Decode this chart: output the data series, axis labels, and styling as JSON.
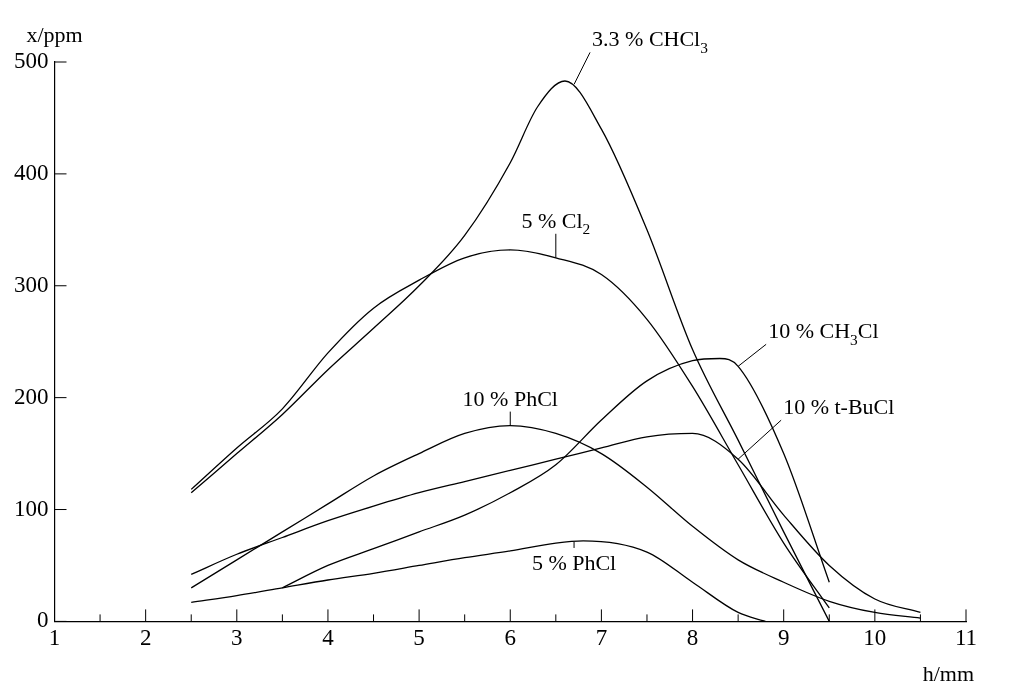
{
  "chart_data": {
    "type": "line",
    "xlabel": "h/mm",
    "ylabel": "x/ppm",
    "xlim": [
      1,
      11
    ],
    "ylim": [
      0,
      500
    ],
    "xticks": [
      1,
      {
        "value": 1.5,
        "label": null
      },
      2,
      {
        "value": 2.5,
        "label": null
      },
      3,
      {
        "value": 3.5,
        "label": null
      },
      4,
      {
        "value": 4.5,
        "label": null
      },
      5,
      {
        "value": 5.5,
        "label": null
      },
      6,
      {
        "value": 6.5,
        "label": null
      },
      7,
      {
        "value": 7.5,
        "label": null
      },
      8,
      {
        "value": 8.5,
        "label": null
      },
      9,
      {
        "value": 9.5,
        "label": null
      },
      10,
      {
        "value": 10.5,
        "label": null
      },
      11
    ],
    "yticks": [
      0,
      100,
      200,
      300,
      400,
      500
    ],
    "grid": false,
    "legend": false,
    "marker": "none",
    "line_style": "solid",
    "series": [
      {
        "color": "#000000",
        "x": [
          2.5,
          3,
          3.5,
          4,
          4.5,
          5,
          5.5,
          6,
          6.3,
          6.6,
          7,
          7.5,
          8,
          8.5,
          9,
          9.5
        ],
        "values": [
          115,
          150,
          185,
          225,
          262,
          300,
          345,
          410,
          460,
          483,
          440,
          350,
          243,
          162,
          80,
          0
        ]
      },
      {
        "color": "#000000",
        "x": [
          2.5,
          3,
          3.5,
          4,
          4.5,
          5,
          5.5,
          6,
          6.5,
          7,
          7.5,
          8,
          8.5,
          9,
          9.5
        ],
        "values": [
          118,
          155,
          190,
          240,
          280,
          305,
          325,
          332,
          325,
          310,
          270,
          210,
          140,
          70,
          12
        ]
      },
      {
        "color": "#000000",
        "x": [
          3.5,
          4,
          4.5,
          5,
          5.5,
          6,
          6.5,
          7,
          7.5,
          8,
          8.3,
          8.5,
          9,
          9.5
        ],
        "values": [
          30,
          50,
          65,
          80,
          95,
          115,
          140,
          180,
          215,
          233,
          235,
          228,
          150,
          35
        ]
      },
      {
        "color": "#000000",
        "x": [
          2.5,
          3,
          3.5,
          4,
          4.5,
          5,
          5.5,
          6,
          6.5,
          7,
          7.5,
          8,
          8.5,
          9,
          9.5,
          10,
          10.5
        ],
        "values": [
          42,
          60,
          75,
          90,
          103,
          115,
          125,
          135,
          145,
          155,
          165,
          168,
          145,
          95,
          50,
          20,
          8
        ]
      },
      {
        "color": "#000000",
        "x": [
          2.5,
          3,
          3.5,
          4,
          4.5,
          5,
          5.5,
          6,
          6.5,
          7,
          7.5,
          8,
          8.5,
          9,
          9.5,
          10,
          10.5
        ],
        "values": [
          30,
          55,
          80,
          105,
          130,
          150,
          168,
          175,
          168,
          150,
          120,
          85,
          55,
          35,
          18,
          8,
          3
        ]
      },
      {
        "color": "#000000",
        "x": [
          2.5,
          3,
          3.5,
          4,
          4.5,
          5,
          5.5,
          6,
          6.5,
          6.8,
          7.5,
          8,
          8.5,
          8.8
        ],
        "values": [
          17,
          23,
          30,
          37,
          43,
          50,
          57,
          63,
          70,
          72,
          62,
          35,
          8,
          0
        ]
      }
    ],
    "annotations": [
      {
        "text": "3.3 % CHCl$_{3}$",
        "x": 6.7,
        "y": 480
      },
      {
        "text": "5 % Cl$_{2}$",
        "x": 6.5,
        "y": 325
      },
      {
        "text": "10 % CH$_{3}$Cl",
        "x": 8.5,
        "y": 228
      },
      {
        "text": "10 % t-BuCl",
        "x": 8.5,
        "y": 145
      },
      {
        "text": "10 % PhCl",
        "x": 6,
        "y": 175
      },
      {
        "text": "5 % PhCl",
        "x": 6.7,
        "y": 71
      }
    ]
  }
}
